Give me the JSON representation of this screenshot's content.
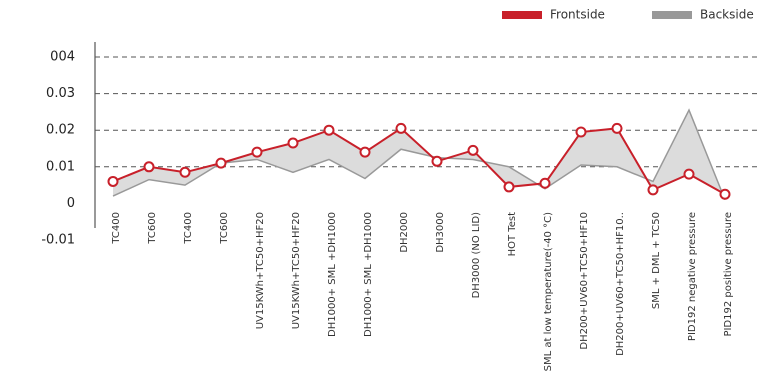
{
  "chart_data": {
    "type": "line",
    "categories": [
      "TC400",
      "TC600",
      "TC400",
      "TC600",
      "UV15KWh+TC50+HF20",
      "UV15KWh+TC50+HF20",
      "DH1000+ SML +DH1000",
      "DH1000+ SML +DH1000",
      "DH2000",
      "DH3000",
      "DH3000 (NO LID)",
      "HOT Test",
      "SML at low temperature(-40 °C)",
      "DH200+UV60+TC50+HF10",
      "DH200+UV60+TC50+HF10..",
      "SML + DML + TC50",
      "PID192 negative pressure",
      "PID192 positive pressure"
    ],
    "series": [
      {
        "name": "Frontside",
        "color": "#c8202a",
        "values": [
          0.006,
          0.01,
          0.0085,
          0.011,
          0.014,
          0.0165,
          0.02,
          0.014,
          0.0205,
          0.0115,
          0.0145,
          0.0045,
          0.0055,
          0.0195,
          0.0205,
          0.0037,
          0.008,
          0.0025
        ]
      },
      {
        "name": "Backside",
        "color": "#999999",
        "values": [
          0.002,
          0.0065,
          0.005,
          0.011,
          0.012,
          0.0085,
          0.012,
          0.0068,
          0.0148,
          0.0125,
          0.012,
          0.01,
          0.004,
          0.0105,
          0.01,
          0.006,
          0.0255,
          0.001
        ]
      }
    ],
    "ylim": [
      -0.01,
      0.04
    ],
    "yticks": [
      -0.01,
      0,
      0.01,
      0.02,
      0.03,
      {
        "value": 0.04,
        "label": "004"
      }
    ],
    "grid": true,
    "legend": "top-right"
  }
}
